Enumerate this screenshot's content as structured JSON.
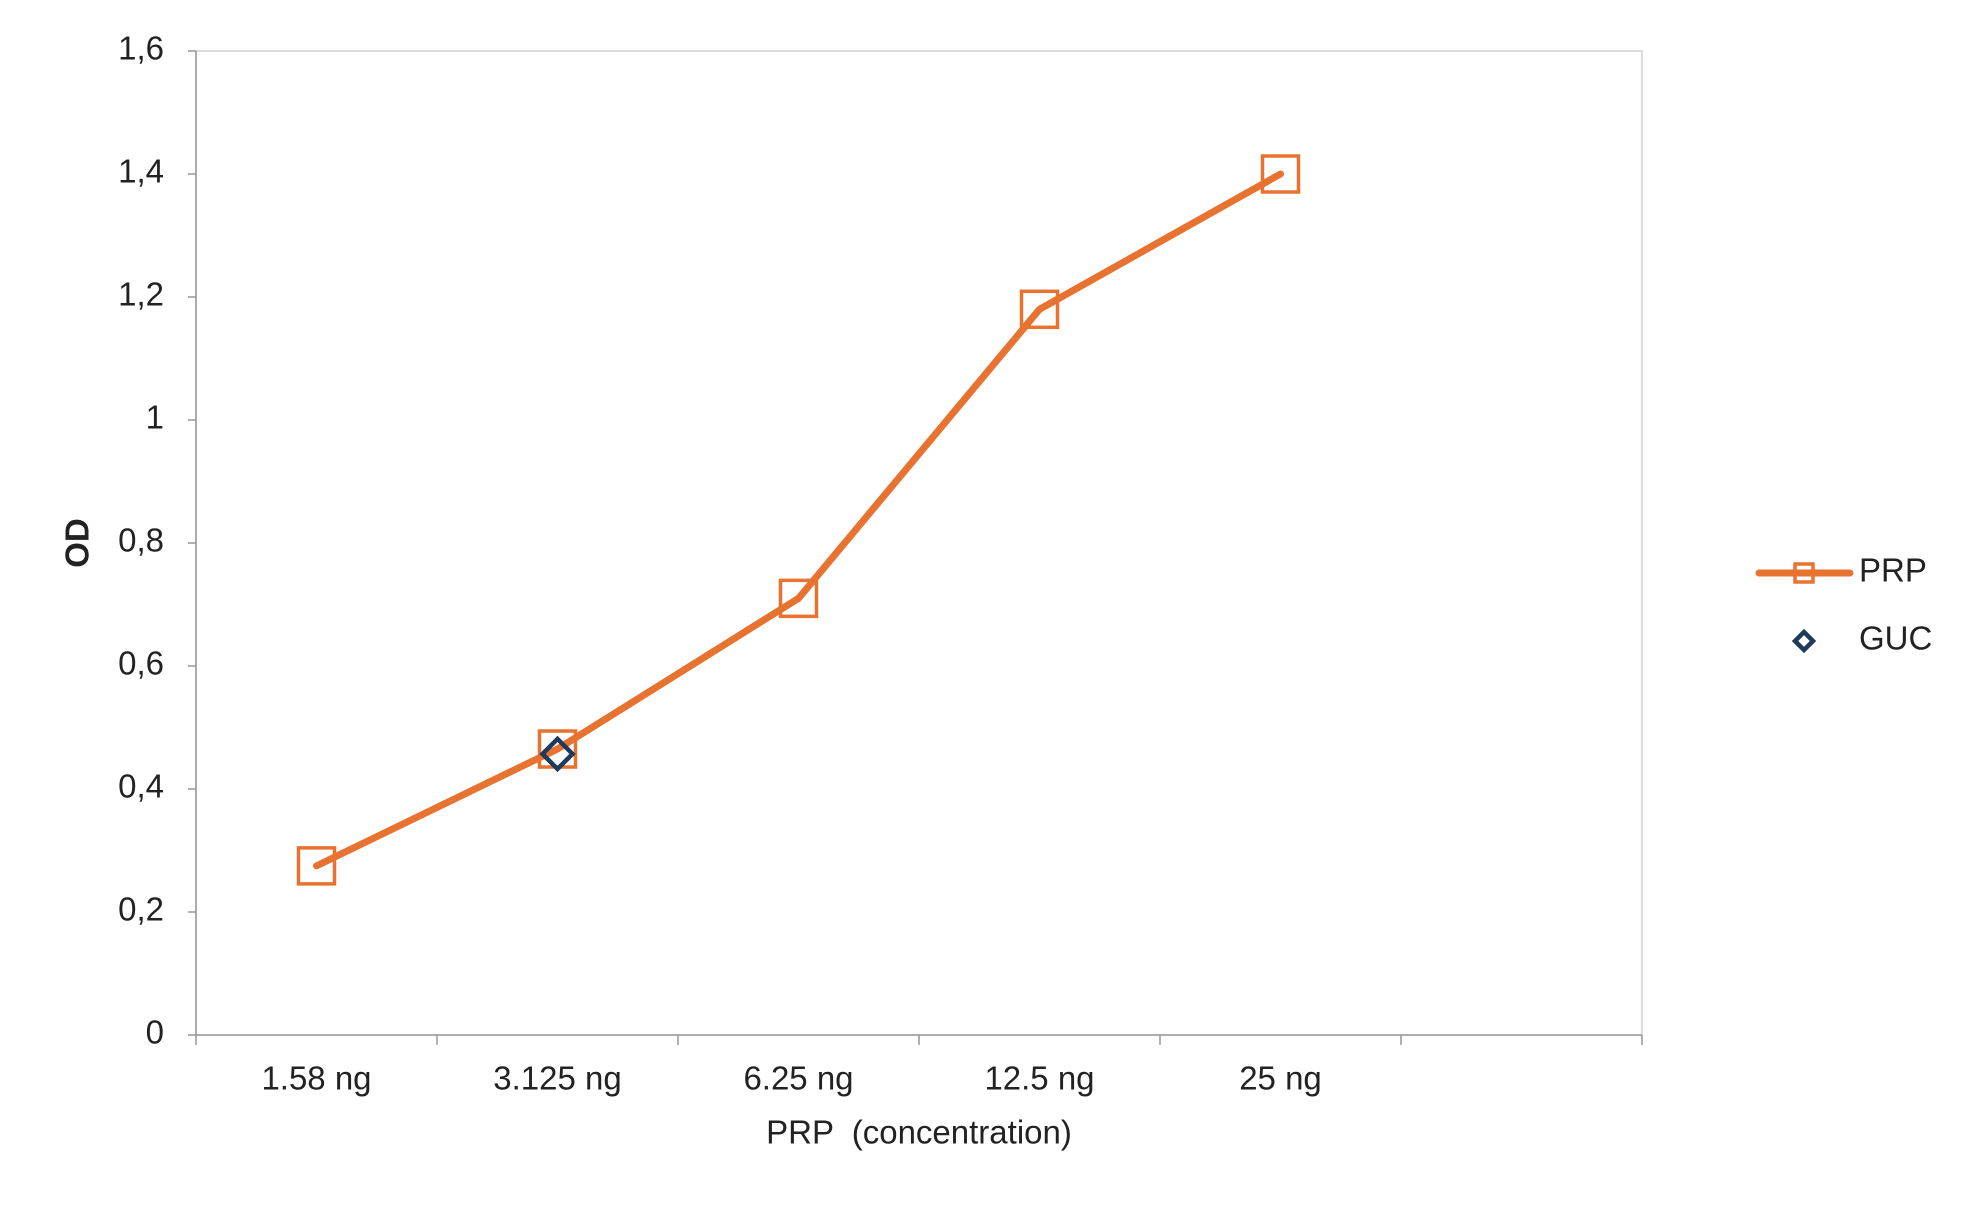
{
  "chart_data": {
    "type": "line",
    "x_label": "PRP  (concentration)",
    "y_label": "OD",
    "categories": [
      "1.58 ng",
      "3.125 ng",
      "6.25 ng",
      "12.5 ng",
      "25 ng",
      null
    ],
    "series": [
      {
        "name": "PRP",
        "color": "#e87230",
        "marker": "square",
        "line": true,
        "values": [
          0.275,
          0.465,
          0.71,
          1.18,
          1.4,
          null
        ]
      },
      {
        "name": "GUC",
        "color": "#1f3a5a",
        "marker": "diamond",
        "line": false,
        "values": [
          null,
          0.457,
          null,
          null,
          null,
          null
        ]
      }
    ],
    "ylim": [
      0,
      1.6
    ],
    "yticks": [
      0,
      {
        "value": 0.2,
        "label": "0,2"
      },
      {
        "value": 0.4,
        "label": "0,4"
      },
      {
        "value": 0.6,
        "label": "0,6"
      },
      {
        "value": 0.8,
        "label": "0,8"
      },
      1,
      {
        "value": 1.2,
        "label": "1,2"
      },
      {
        "value": 1.4,
        "label": "1,4"
      },
      {
        "value": 1.6,
        "label": "1,6"
      }
    ],
    "grid": false,
    "legend": "right"
  }
}
